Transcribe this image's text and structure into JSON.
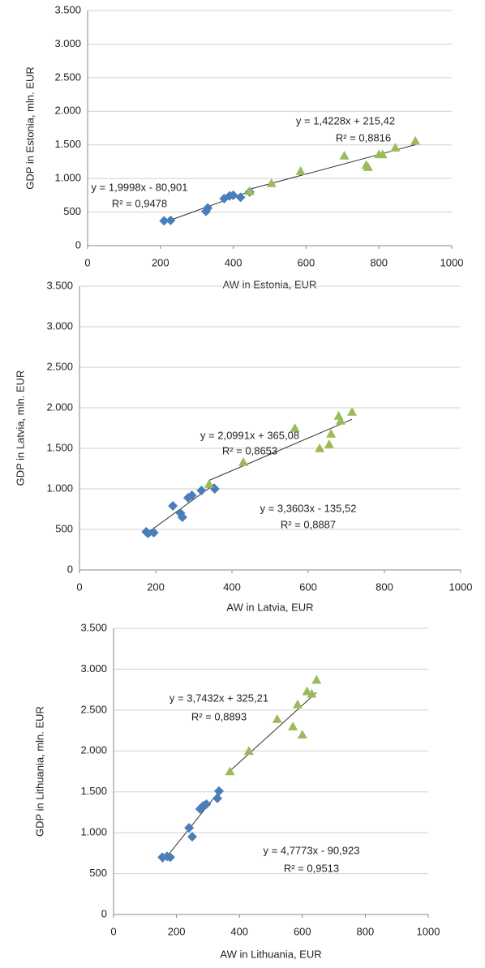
{
  "chart_data": [
    {
      "type": "scatter",
      "x_label": "AW in Estonia, EUR",
      "y_label": "GDP in Estonia, mln. EUR",
      "xlim": [
        0,
        1000
      ],
      "xticks": [
        0,
        200,
        400,
        600,
        800,
        1000
      ],
      "ylim": [
        0,
        3500
      ],
      "yticks": [
        0,
        500,
        {
          "value": 1000,
          "label": "1.000"
        },
        {
          "value": 1500,
          "label": "1.500"
        },
        {
          "value": 2000,
          "label": "2.000"
        },
        {
          "value": 2500,
          "label": "2.500"
        },
        {
          "value": 3000,
          "label": "3.000"
        },
        {
          "value": 3500,
          "label": "3.500"
        }
      ],
      "grid": true,
      "series": [
        {
          "color": "#4a7ebb",
          "marker": "diamond",
          "trendline": true,
          "x": [
            210,
            228,
            325,
            330,
            375,
            390,
            400,
            420,
            445
          ],
          "values": [
            370,
            375,
            510,
            560,
            700,
            740,
            750,
            720,
            800
          ]
        },
        {
          "color": "#9bbb59",
          "marker": "triangle",
          "trendline": true,
          "x": [
            445,
            505,
            585,
            705,
            765,
            770,
            800,
            810,
            845,
            900
          ],
          "values": [
            810,
            930,
            1110,
            1340,
            1200,
            1170,
            1360,
            1360,
            1460,
            1560
          ]
        }
      ],
      "annotations": [
        "y = 1,4228x + 215,42",
        "R² = 0,8816",
        "y = 1,9998x - 80,901",
        "R² = 0,9478"
      ]
    },
    {
      "type": "scatter",
      "x_label": "AW in Latvia, EUR",
      "y_label": "GDP in Latvia, mln. EUR",
      "xlim": [
        0,
        1000
      ],
      "xticks": [
        0,
        200,
        400,
        600,
        800,
        1000
      ],
      "ylim": [
        0,
        3500
      ],
      "yticks": [
        0,
        500,
        {
          "value": 1000,
          "label": "1.000"
        },
        {
          "value": 1500,
          "label": "1.500"
        },
        {
          "value": 2000,
          "label": "2.000"
        },
        {
          "value": 2500,
          "label": "2.500"
        },
        {
          "value": 3000,
          "label": "3.000"
        },
        {
          "value": 3500,
          "label": "3.500"
        }
      ],
      "grid": true,
      "series": [
        {
          "color": "#4a7ebb",
          "marker": "diamond",
          "trendline": true,
          "x": [
            175,
            180,
            195,
            245,
            265,
            270,
            285,
            295,
            320,
            355
          ],
          "values": [
            470,
            450,
            460,
            790,
            700,
            650,
            890,
            920,
            980,
            1000
          ]
        },
        {
          "color": "#9bbb59",
          "marker": "triangle",
          "trendline": true,
          "x": [
            340,
            430,
            565,
            630,
            655,
            660,
            680,
            685,
            715
          ],
          "values": [
            1060,
            1330,
            1750,
            1500,
            1550,
            1680,
            1900,
            1840,
            1950
          ]
        }
      ],
      "annotations": [
        "y = 2,0991x + 365,08",
        "R² = 0,8653",
        "y = 3,3603x - 135,52",
        "R² = 0,8887"
      ]
    },
    {
      "type": "scatter",
      "x_label": "AW in Lithuania, EUR",
      "y_label": "GDP in Lithuania, mln. EUR",
      "xlim": [
        0,
        1000
      ],
      "xticks": [
        0,
        200,
        400,
        600,
        800,
        1000
      ],
      "ylim": [
        0,
        3500
      ],
      "yticks": [
        0,
        500,
        {
          "value": 1000,
          "label": "1.000"
        },
        {
          "value": 1500,
          "label": "1.500"
        },
        {
          "value": 2000,
          "label": "2.000"
        },
        {
          "value": 2500,
          "label": "2.500"
        },
        {
          "value": 3000,
          "label": "3.000"
        },
        {
          "value": 3500,
          "label": "3.500"
        }
      ],
      "grid": true,
      "series": [
        {
          "color": "#4a7ebb",
          "marker": "diamond",
          "trendline": true,
          "x": [
            155,
            170,
            180,
            240,
            250,
            275,
            285,
            295,
            330,
            335
          ],
          "values": [
            700,
            710,
            700,
            1060,
            950,
            1290,
            1330,
            1350,
            1420,
            1510
          ]
        },
        {
          "color": "#9bbb59",
          "marker": "triangle",
          "trendline": true,
          "x": [
            370,
            430,
            520,
            570,
            585,
            600,
            615,
            630,
            645
          ],
          "values": [
            1750,
            2000,
            2390,
            2300,
            2570,
            2200,
            2730,
            2700,
            2870
          ]
        }
      ],
      "annotations": [
        "y = 3,7432x + 325,21",
        "R² = 0,8893",
        "y = 4,7773x - 90,923",
        "R² = 0,9513"
      ]
    }
  ]
}
